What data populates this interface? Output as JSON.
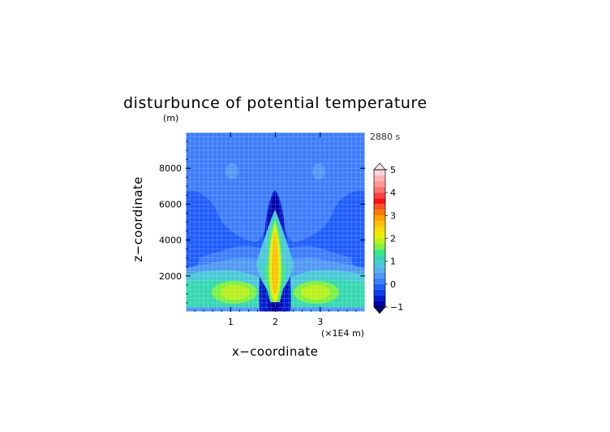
{
  "chart_data": {
    "type": "heatmap",
    "title": "disturbunce of potential temperature",
    "ylabel": "z−coordinate",
    "ylabel_unit": "(m)",
    "xlabel": "x−coordinate",
    "xlabel_unit": "(×1E4 m)",
    "timestamp": "2880 s",
    "xlim": [
      0,
      4
    ],
    "ylim": [
      0,
      10000
    ],
    "x_ticks": [
      1,
      2,
      3
    ],
    "x_tick_labels": [
      "1",
      "2",
      "3"
    ],
    "y_ticks": [
      2000,
      4000,
      6000,
      8000
    ],
    "y_tick_labels": [
      "2000",
      "4000",
      "6000",
      "8000"
    ],
    "colorbar": {
      "tick_values": [
        -1,
        0,
        1,
        2,
        3,
        4,
        5
      ],
      "tick_labels": [
        "−1",
        "0",
        "1",
        "2",
        "3",
        "4",
        "5"
      ],
      "levels": [
        -1.0,
        -0.75,
        -0.5,
        -0.25,
        0.0,
        0.25,
        0.5,
        0.75,
        1.0,
        1.25,
        1.5,
        1.75,
        2.0,
        2.25,
        2.5,
        2.75,
        3.0,
        3.25,
        3.5,
        3.75,
        4.0,
        4.25,
        4.5,
        4.75,
        5.0
      ],
      "colors": [
        "#0000a8",
        "#0018d0",
        "#0a3cf0",
        "#1e5cff",
        "#3c7cff",
        "#4f98f4",
        "#55b0f0",
        "#49c8d8",
        "#34d8b0",
        "#34e888",
        "#7cf040",
        "#b8f01c",
        "#e8f000",
        "#f8dc00",
        "#ffc000",
        "#ffa000",
        "#ff7800",
        "#ff5020",
        "#ff1010",
        "#ff4040",
        "#ff7070",
        "#ff9696",
        "#ffb4b4",
        "#ffd4d4"
      ],
      "under_color": "#00007a",
      "over_color": "#ffe8e8"
    },
    "features": [
      {
        "name": "central warm plume",
        "x": 2.0,
        "z_range": [
          0,
          6700
        ],
        "max_value": 2.8
      },
      {
        "name": "lower left warm lobe",
        "x": 1.0,
        "z_range": [
          300,
          1600
        ],
        "max_value": 1.3
      },
      {
        "name": "lower right warm lobe",
        "x": 3.0,
        "z_range": [
          300,
          1600
        ],
        "max_value": 1.3
      },
      {
        "name": "upper cold region",
        "z_range": [
          2000,
          7000
        ],
        "min_value": -0.5
      },
      {
        "name": "upper small blobs",
        "x": [
          1.0,
          3.0
        ],
        "z": 7900,
        "value": -0.25
      }
    ]
  }
}
